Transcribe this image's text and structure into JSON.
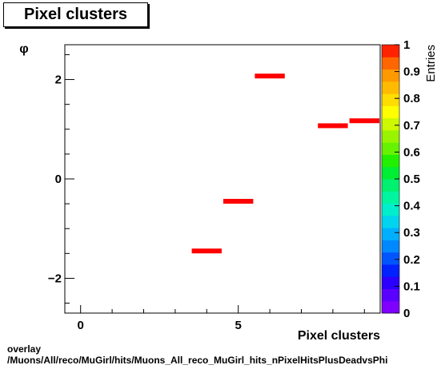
{
  "title": "Pixel clusters",
  "footer": {
    "line1": "overlay",
    "line2": "/Muons/All/reco/MuGirl/hits/Muons_All_reco_MuGirl_hits_nPixelHitsPlusDeadvsPhi"
  },
  "chart_data": {
    "type": "heatmap",
    "xlabel": "Pixel clusters",
    "ylabel": "φ",
    "zlabel": "Entries",
    "xlim": [
      -0.5,
      9.5
    ],
    "ylim": [
      -2.7,
      2.7
    ],
    "zlim": [
      0,
      1
    ],
    "x_ticks": [
      0,
      5
    ],
    "y_ticks": [
      -2,
      0,
      2
    ],
    "z_ticks": [
      "0",
      "0.1",
      "0.2",
      "0.3",
      "0.4",
      "0.5",
      "0.6",
      "0.7",
      "0.8",
      "0.9",
      "1"
    ],
    "bins": [
      {
        "x": 4,
        "y": -1.45,
        "value": 1
      },
      {
        "x": 5,
        "y": -0.45,
        "value": 1
      },
      {
        "x": 6,
        "y": 2.07,
        "value": 1
      },
      {
        "x": 8,
        "y": 1.07,
        "value": 1
      },
      {
        "x": 9,
        "y": 1.17,
        "value": 1
      }
    ],
    "x_bin_width": 1,
    "colors": {
      "bin": "#ff0000",
      "palette": [
        "#7f00ff",
        "#5a00ff",
        "#2b00ff",
        "#0022ff",
        "#0055ff",
        "#0088ff",
        "#00b0ff",
        "#00d4ee",
        "#00eecc",
        "#00f5a0",
        "#00f070",
        "#00ee33",
        "#22f000",
        "#66f200",
        "#99f400",
        "#ccf800",
        "#ffff00",
        "#ffdd00",
        "#ffbb00",
        "#ff9900",
        "#ff6600",
        "#ff2200"
      ]
    }
  }
}
